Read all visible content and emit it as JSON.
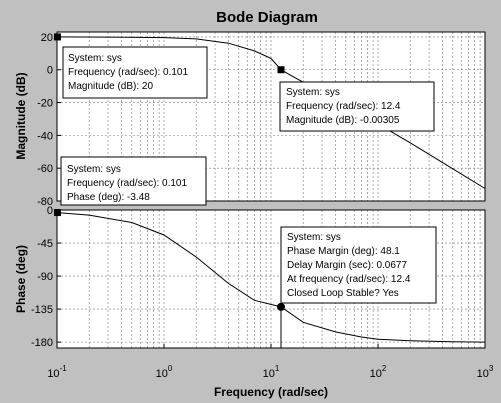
{
  "chart_data": {
    "type": "line",
    "title": "Bode Diagram",
    "xlabel": "Frequency  (rad/sec)",
    "x_scale": "log",
    "x_ticks": [
      {
        "exp": -1,
        "base": "10",
        "pow": "-1"
      },
      {
        "exp": 0,
        "base": "10",
        "pow": "0"
      },
      {
        "exp": 1,
        "base": "10",
        "pow": "1"
      },
      {
        "exp": 2,
        "base": "10",
        "pow": "2"
      },
      {
        "exp": 3,
        "base": "10",
        "pow": "3"
      }
    ],
    "xlim": [
      0.1,
      1000
    ],
    "grid": true,
    "magnitude": {
      "ylabel": "Magnitude (dB)",
      "ylim": [
        -80,
        23
      ],
      "yticks": [
        20,
        0,
        -20,
        -40,
        -60,
        -80
      ],
      "ytick_labels": [
        "20",
        "0",
        "-20",
        "-40",
        "-60",
        "-80"
      ],
      "series": [
        {
          "x": [
            0.1,
            0.3,
            1,
            2,
            4,
            7,
            10,
            12.4,
            15,
            20,
            30,
            50,
            100,
            200,
            500,
            1000
          ],
          "y": [
            20,
            19.9,
            19.6,
            18.8,
            16.2,
            11.5,
            6.9,
            0,
            -3.1,
            -7.6,
            -13.6,
            -21.8,
            -33.0,
            -44.5,
            -60.4,
            -72.4
          ]
        }
      ]
    },
    "phase": {
      "ylabel": "Phase (deg)",
      "ylim": [
        -188,
        0
      ],
      "yticks": [
        0,
        -45,
        -90,
        -135,
        -180
      ],
      "ytick_labels": [
        "0",
        "-45",
        "-90",
        "-135",
        "-180"
      ],
      "series": [
        {
          "x": [
            0.1,
            0.2,
            0.5,
            1,
            2,
            4,
            7,
            12.4,
            20,
            40,
            70,
            100,
            200,
            500,
            1000
          ],
          "y": [
            -3.5,
            -7,
            -17,
            -34,
            -64,
            -100,
            -123,
            -132,
            -153,
            -166,
            -173,
            -176,
            -178,
            -179.5,
            -180
          ]
        }
      ]
    },
    "markers": [
      {
        "panel": "magnitude",
        "x": 0.101,
        "y": 20,
        "shape": "square"
      },
      {
        "panel": "magnitude",
        "x": 12.4,
        "y": -0.00305,
        "shape": "square"
      },
      {
        "panel": "phase",
        "x": 0.101,
        "y": -3.48,
        "shape": "square"
      },
      {
        "panel": "phase",
        "x": 12.4,
        "y": -132,
        "shape": "circle"
      }
    ],
    "annotations": [
      {
        "lines": [
          "System: sys",
          "Frequency (rad/sec): 0.101",
          "Magnitude (dB): 20"
        ]
      },
      {
        "lines": [
          "System: sys",
          "Frequency (rad/sec): 12.4",
          "Magnitude (dB): -0.00305"
        ]
      },
      {
        "lines": [
          "System: sys",
          "Frequency (rad/sec): 0.101",
          "Phase (deg): -3.48"
        ]
      },
      {
        "lines": [
          "System: sys",
          "Phase Margin (deg): 48.1",
          "Delay Margin (sec): 0.0677",
          "At frequency (rad/sec): 12.4",
          "Closed Loop Stable? Yes"
        ]
      }
    ]
  }
}
